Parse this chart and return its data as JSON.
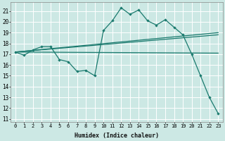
{
  "xlabel": "Humidex (Indice chaleur)",
  "bg_color": "#cce8e4",
  "line_color": "#1a7a6e",
  "grid_color": "#ffffff",
  "xlim": [
    -0.5,
    23.5
  ],
  "ylim": [
    10.7,
    21.8
  ],
  "yticks": [
    11,
    12,
    13,
    14,
    15,
    16,
    17,
    18,
    19,
    20,
    21
  ],
  "xticks": [
    0,
    1,
    2,
    3,
    4,
    5,
    6,
    7,
    8,
    9,
    10,
    11,
    12,
    13,
    14,
    15,
    16,
    17,
    18,
    19,
    20,
    21,
    22,
    23
  ],
  "line1_x": [
    0,
    1,
    2,
    3,
    4,
    5,
    6,
    7,
    8,
    9,
    10,
    11,
    12,
    13,
    14,
    15,
    16,
    17,
    18,
    19,
    20,
    21,
    22,
    23
  ],
  "line1_y": [
    17.2,
    16.9,
    17.4,
    17.7,
    17.7,
    16.5,
    16.3,
    15.4,
    15.5,
    15.0,
    19.2,
    20.1,
    21.3,
    20.7,
    21.1,
    20.1,
    19.7,
    20.2,
    19.5,
    18.8,
    17.0,
    15.0,
    13.0,
    11.5
  ],
  "line2_x": [
    0,
    23
  ],
  "line2_y": [
    17.2,
    18.8
  ],
  "line3_x": [
    0,
    23
  ],
  "line3_y": [
    17.2,
    17.1
  ],
  "line4_x": [
    0,
    23
  ],
  "line4_y": [
    17.2,
    19.0
  ]
}
